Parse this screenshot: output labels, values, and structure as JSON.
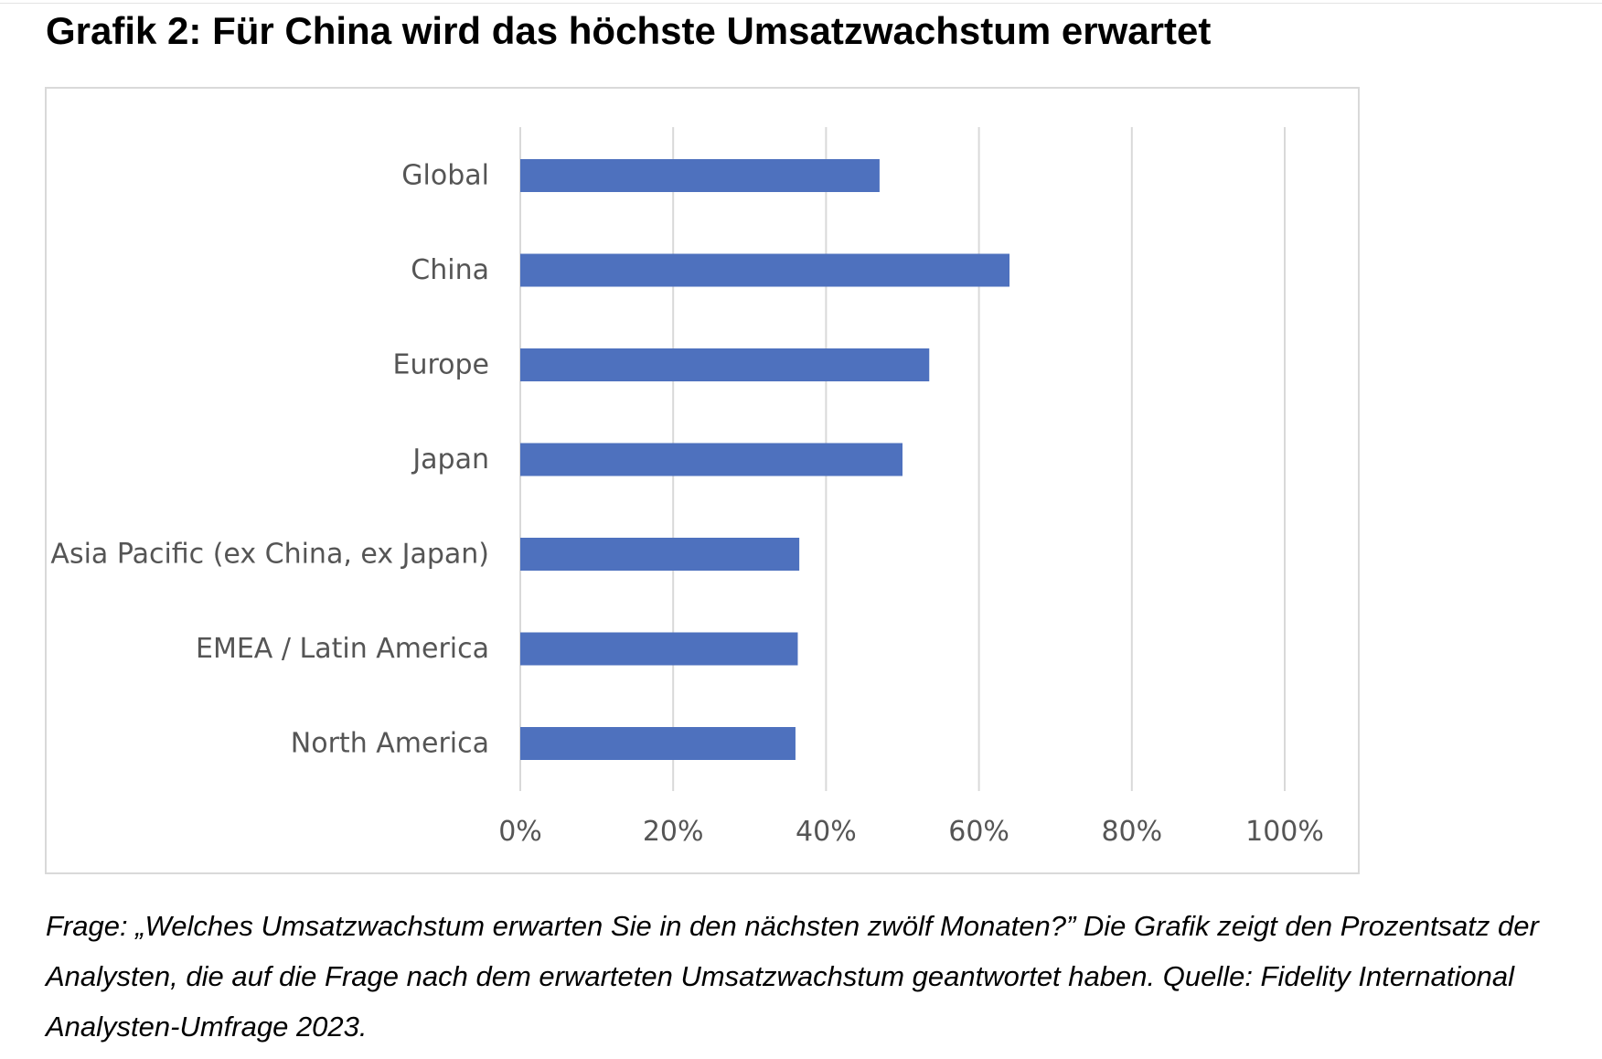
{
  "title": "Grafik 2: Für China wird das höchste Umsatzwachstum erwartet",
  "caption": "Frage: „Welches Umsatzwachstum erwarten Sie in den nächsten zwölf Monaten?” Die Grafik zeigt den Prozentsatz der Analysten, die auf die Frage nach dem erwarteten Umsatzwachstum geantwortet haben. Quelle: Fidelity International Analysten-Umfrage 2023.",
  "colors": {
    "bar": "#4e71be",
    "grid": "#d9d9d9",
    "label": "#555555"
  },
  "chart_data": {
    "type": "bar",
    "orientation": "horizontal",
    "categories": [
      "Global",
      "China",
      "Europe",
      "Japan",
      "Asia Pacific (ex China, ex Japan)",
      "EMEA / Latin America",
      "North America"
    ],
    "values": [
      47,
      64,
      53.5,
      50,
      36.5,
      36.3,
      36
    ],
    "xlim": [
      0,
      100
    ],
    "xticks": [
      "0%",
      "20%",
      "40%",
      "60%",
      "80%",
      "100%"
    ],
    "title": "",
    "xlabel": "",
    "ylabel": "",
    "grid": true,
    "legend": false
  }
}
